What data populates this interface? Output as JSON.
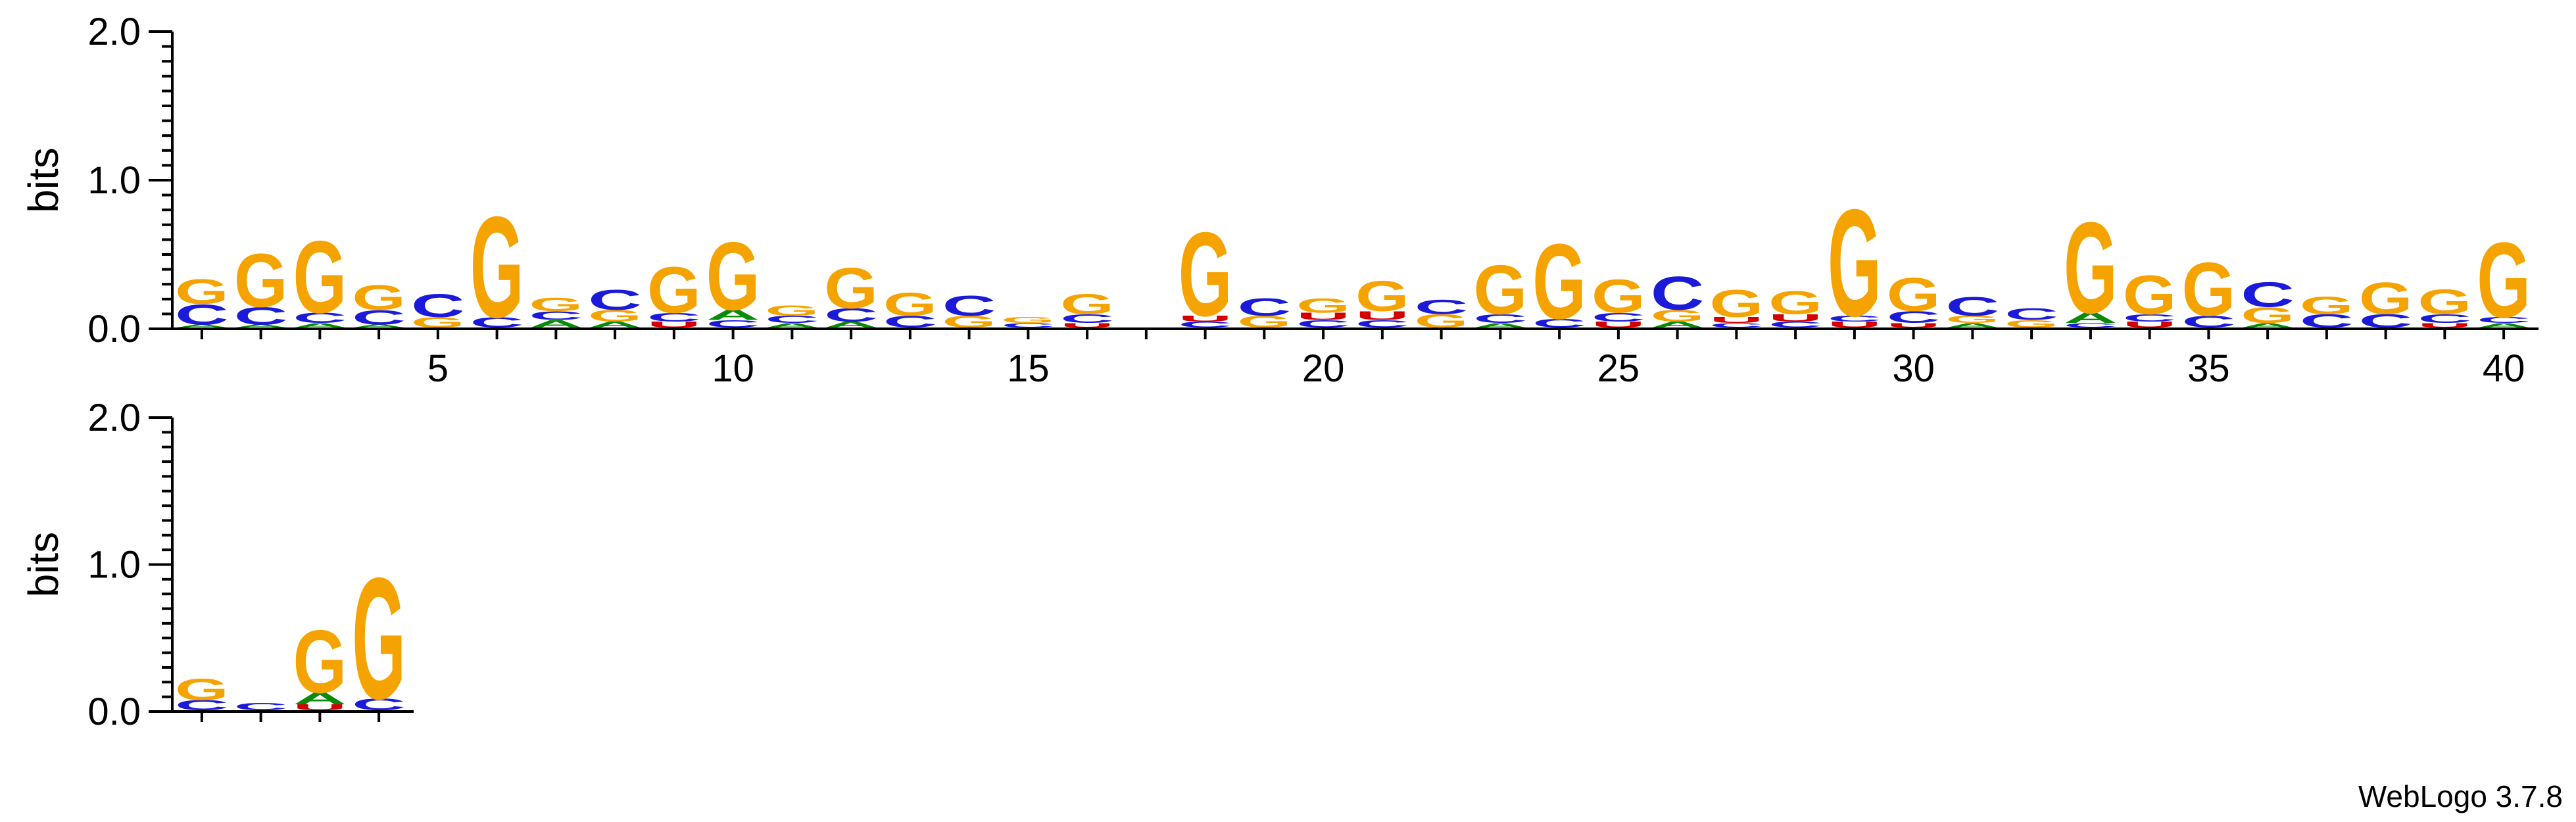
{
  "colors": {
    "A": "#0a8a0a",
    "C": "#1a1ad8",
    "G": "#f5a300",
    "U": "#d40000"
  },
  "credit": "WebLogo 3.7.8",
  "chart_data": [
    {
      "type": "sequence-logo",
      "ylabel": "bits",
      "ylim": [
        0,
        2
      ],
      "yticks": [
        "0.0",
        "1.0",
        "2.0"
      ],
      "x_ticks": [
        "5",
        "10",
        "15",
        "20",
        "25",
        "30",
        "35",
        "40"
      ],
      "positions": [
        {
          "pos": 1,
          "stack": [
            {
              "l": "A",
              "h": 0.02
            },
            {
              "l": "C",
              "h": 0.14
            },
            {
              "l": "G",
              "h": 0.17
            }
          ]
        },
        {
          "pos": 2,
          "stack": [
            {
              "l": "A",
              "h": 0.02
            },
            {
              "l": "C",
              "h": 0.12
            },
            {
              "l": "G",
              "h": 0.37
            }
          ]
        },
        {
          "pos": 3,
          "stack": [
            {
              "l": "A",
              "h": 0.03
            },
            {
              "l": "C",
              "h": 0.07
            },
            {
              "l": "G",
              "h": 0.5
            }
          ]
        },
        {
          "pos": 4,
          "stack": [
            {
              "l": "A",
              "h": 0.02
            },
            {
              "l": "C",
              "h": 0.1
            },
            {
              "l": "G",
              "h": 0.17
            }
          ]
        },
        {
          "pos": 5,
          "stack": [
            {
              "l": "G",
              "h": 0.07
            },
            {
              "l": "C",
              "h": 0.16
            }
          ]
        },
        {
          "pos": 6,
          "stack": [
            {
              "l": "C",
              "h": 0.07
            },
            {
              "l": "G",
              "h": 0.7
            }
          ]
        },
        {
          "pos": 7,
          "stack": [
            {
              "l": "A",
              "h": 0.05
            },
            {
              "l": "C",
              "h": 0.06
            },
            {
              "l": "G",
              "h": 0.09
            }
          ]
        },
        {
          "pos": 8,
          "stack": [
            {
              "l": "A",
              "h": 0.04
            },
            {
              "l": "G",
              "h": 0.08
            },
            {
              "l": "C",
              "h": 0.14
            }
          ]
        },
        {
          "pos": 9,
          "stack": [
            {
              "l": "U",
              "h": 0.04
            },
            {
              "l": "C",
              "h": 0.06
            },
            {
              "l": "G",
              "h": 0.32
            }
          ]
        },
        {
          "pos": 10,
          "stack": [
            {
              "l": "C",
              "h": 0.05
            },
            {
              "l": "A",
              "h": 0.07
            },
            {
              "l": "G",
              "h": 0.47
            }
          ]
        },
        {
          "pos": 11,
          "stack": [
            {
              "l": "A",
              "h": 0.03
            },
            {
              "l": "C",
              "h": 0.05
            },
            {
              "l": "G",
              "h": 0.07
            }
          ]
        },
        {
          "pos": 12,
          "stack": [
            {
              "l": "A",
              "h": 0.04
            },
            {
              "l": "C",
              "h": 0.09
            },
            {
              "l": "G",
              "h": 0.28
            }
          ]
        },
        {
          "pos": 13,
          "stack": [
            {
              "l": "C",
              "h": 0.08
            },
            {
              "l": "G",
              "h": 0.16
            }
          ]
        },
        {
          "pos": 14,
          "stack": [
            {
              "l": "G",
              "h": 0.08
            },
            {
              "l": "C",
              "h": 0.14
            }
          ]
        },
        {
          "pos": 15,
          "stack": [
            {
              "l": "C",
              "h": 0.03
            },
            {
              "l": "G",
              "h": 0.04
            }
          ]
        },
        {
          "pos": 16,
          "stack": [
            {
              "l": "U",
              "h": 0.03
            },
            {
              "l": "C",
              "h": 0.06
            },
            {
              "l": "G",
              "h": 0.14
            }
          ]
        },
        {
          "pos": 17,
          "stack": []
        },
        {
          "pos": 18,
          "stack": [
            {
              "l": "C",
              "h": 0.04
            },
            {
              "l": "U",
              "h": 0.04
            },
            {
              "l": "G",
              "h": 0.58
            }
          ]
        },
        {
          "pos": 19,
          "stack": [
            {
              "l": "G",
              "h": 0.08
            },
            {
              "l": "C",
              "h": 0.12
            }
          ]
        },
        {
          "pos": 20,
          "stack": [
            {
              "l": "C",
              "h": 0.05
            },
            {
              "l": "U",
              "h": 0.05
            },
            {
              "l": "G",
              "h": 0.1
            }
          ]
        },
        {
          "pos": 21,
          "stack": [
            {
              "l": "C",
              "h": 0.05
            },
            {
              "l": "U",
              "h": 0.06
            },
            {
              "l": "G",
              "h": 0.21
            }
          ]
        },
        {
          "pos": 22,
          "stack": [
            {
              "l": "G",
              "h": 0.09
            },
            {
              "l": "C",
              "h": 0.1
            }
          ]
        },
        {
          "pos": 23,
          "stack": [
            {
              "l": "A",
              "h": 0.03
            },
            {
              "l": "C",
              "h": 0.06
            },
            {
              "l": "G",
              "h": 0.34
            }
          ]
        },
        {
          "pos": 24,
          "stack": [
            {
              "l": "C",
              "h": 0.06
            },
            {
              "l": "G",
              "h": 0.52
            }
          ]
        },
        {
          "pos": 25,
          "stack": [
            {
              "l": "U",
              "h": 0.04
            },
            {
              "l": "C",
              "h": 0.06
            },
            {
              "l": "G",
              "h": 0.23
            }
          ]
        },
        {
          "pos": 26,
          "stack": [
            {
              "l": "A",
              "h": 0.04
            },
            {
              "l": "G",
              "h": 0.08
            },
            {
              "l": "C",
              "h": 0.23
            }
          ]
        },
        {
          "pos": 27,
          "stack": [
            {
              "l": "C",
              "h": 0.03
            },
            {
              "l": "U",
              "h": 0.04
            },
            {
              "l": "G",
              "h": 0.19
            }
          ]
        },
        {
          "pos": 28,
          "stack": [
            {
              "l": "C",
              "h": 0.04
            },
            {
              "l": "U",
              "h": 0.05
            },
            {
              "l": "G",
              "h": 0.16
            }
          ]
        },
        {
          "pos": 29,
          "stack": [
            {
              "l": "U",
              "h": 0.04
            },
            {
              "l": "C",
              "h": 0.04
            },
            {
              "l": "G",
              "h": 0.74
            }
          ]
        },
        {
          "pos": 30,
          "stack": [
            {
              "l": "U",
              "h": 0.03
            },
            {
              "l": "C",
              "h": 0.08
            },
            {
              "l": "G",
              "h": 0.23
            }
          ]
        },
        {
          "pos": 31,
          "stack": [
            {
              "l": "A",
              "h": 0.03
            },
            {
              "l": "G",
              "h": 0.05
            },
            {
              "l": "C",
              "h": 0.13
            }
          ]
        },
        {
          "pos": 32,
          "stack": [
            {
              "l": "G",
              "h": 0.05
            },
            {
              "l": "C",
              "h": 0.08
            }
          ]
        },
        {
          "pos": 33,
          "stack": [
            {
              "l": "C",
              "h": 0.03
            },
            {
              "l": "A",
              "h": 0.07
            },
            {
              "l": "G",
              "h": 0.63
            }
          ]
        },
        {
          "pos": 34,
          "stack": [
            {
              "l": "U",
              "h": 0.04
            },
            {
              "l": "C",
              "h": 0.05
            },
            {
              "l": "G",
              "h": 0.27
            }
          ]
        },
        {
          "pos": 35,
          "stack": [
            {
              "l": "C",
              "h": 0.08
            },
            {
              "l": "G",
              "h": 0.37
            }
          ]
        },
        {
          "pos": 36,
          "stack": [
            {
              "l": "A",
              "h": 0.03
            },
            {
              "l": "G",
              "h": 0.11
            },
            {
              "l": "C",
              "h": 0.17
            }
          ]
        },
        {
          "pos": 37,
          "stack": [
            {
              "l": "C",
              "h": 0.09
            },
            {
              "l": "G",
              "h": 0.12
            }
          ]
        },
        {
          "pos": 38,
          "stack": [
            {
              "l": "C",
              "h": 0.09
            },
            {
              "l": "G",
              "h": 0.22
            }
          ]
        },
        {
          "pos": 39,
          "stack": [
            {
              "l": "U",
              "h": 0.03
            },
            {
              "l": "C",
              "h": 0.06
            },
            {
              "l": "G",
              "h": 0.17
            }
          ]
        },
        {
          "pos": 40,
          "stack": [
            {
              "l": "A",
              "h": 0.03
            },
            {
              "l": "C",
              "h": 0.04
            },
            {
              "l": "G",
              "h": 0.52
            }
          ]
        }
      ]
    },
    {
      "type": "sequence-logo",
      "ylabel": "bits",
      "ylim": [
        0,
        2
      ],
      "yticks": [
        "0.0",
        "1.0",
        "2.0"
      ],
      "x_ticks": [],
      "positions": [
        {
          "pos": 41,
          "stack": [
            {
              "l": "C",
              "h": 0.07
            },
            {
              "l": "G",
              "h": 0.15
            }
          ]
        },
        {
          "pos": 42,
          "stack": [
            {
              "l": "C",
              "h": 0.05
            }
          ]
        },
        {
          "pos": 43,
          "stack": [
            {
              "l": "U",
              "h": 0.04
            },
            {
              "l": "A",
              "h": 0.08
            },
            {
              "l": "G",
              "h": 0.44
            }
          ]
        },
        {
          "pos": 44,
          "stack": [
            {
              "l": "C",
              "h": 0.08
            },
            {
              "l": "G",
              "h": 0.85
            }
          ]
        }
      ]
    }
  ]
}
